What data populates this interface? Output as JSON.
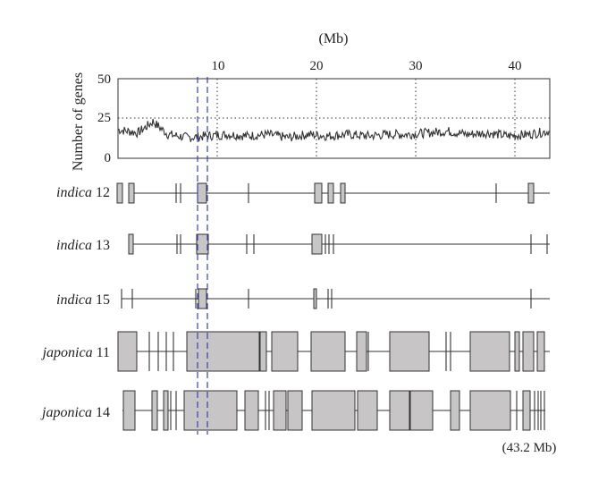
{
  "top_axis": {
    "unit_label": "(Mb)",
    "ticks": [
      "10",
      "20",
      "30",
      "40"
    ]
  },
  "gene_density": {
    "ylabel": "Number of genes",
    "y_ticks": [
      "50",
      "25",
      "0"
    ],
    "threshold": 25,
    "x_range_mb": [
      0,
      43.2
    ],
    "y_range": [
      0,
      50
    ]
  },
  "tracks": [
    {
      "italic": "indica",
      "number": "12"
    },
    {
      "italic": "indica",
      "number": "13"
    },
    {
      "italic": "indica",
      "number": "15"
    },
    {
      "italic": "japonica",
      "number": "11"
    },
    {
      "italic": "japonica",
      "number": "14"
    }
  ],
  "end_label": "(43.2 Mb)",
  "colors": {
    "block_fill": "#c7c5c5",
    "line": "#333333",
    "highlight": "#3b3fb5"
  },
  "chart_data": {
    "type": "line",
    "xlabel": "(Mb)",
    "ylabel": "Number of genes",
    "xlim": [
      0,
      43.2
    ],
    "ylim": [
      0,
      50
    ],
    "x_ticks": [
      10,
      20,
      30,
      40
    ],
    "y_ticks": [
      0,
      25,
      50
    ],
    "reference_line_y": 25,
    "series": [
      {
        "x": [
          0,
          2,
          3.5,
          5,
          7,
          9,
          11,
          13,
          15,
          17,
          19,
          21,
          23,
          25,
          27,
          29,
          31,
          33,
          35,
          37,
          39,
          41,
          43.2
        ],
        "values": [
          18,
          16,
          23,
          15,
          13,
          14,
          15,
          14,
          15,
          13,
          15,
          14,
          15,
          14,
          15,
          15,
          16,
          17,
          15,
          16,
          14,
          15,
          17
        ]
      }
    ]
  }
}
